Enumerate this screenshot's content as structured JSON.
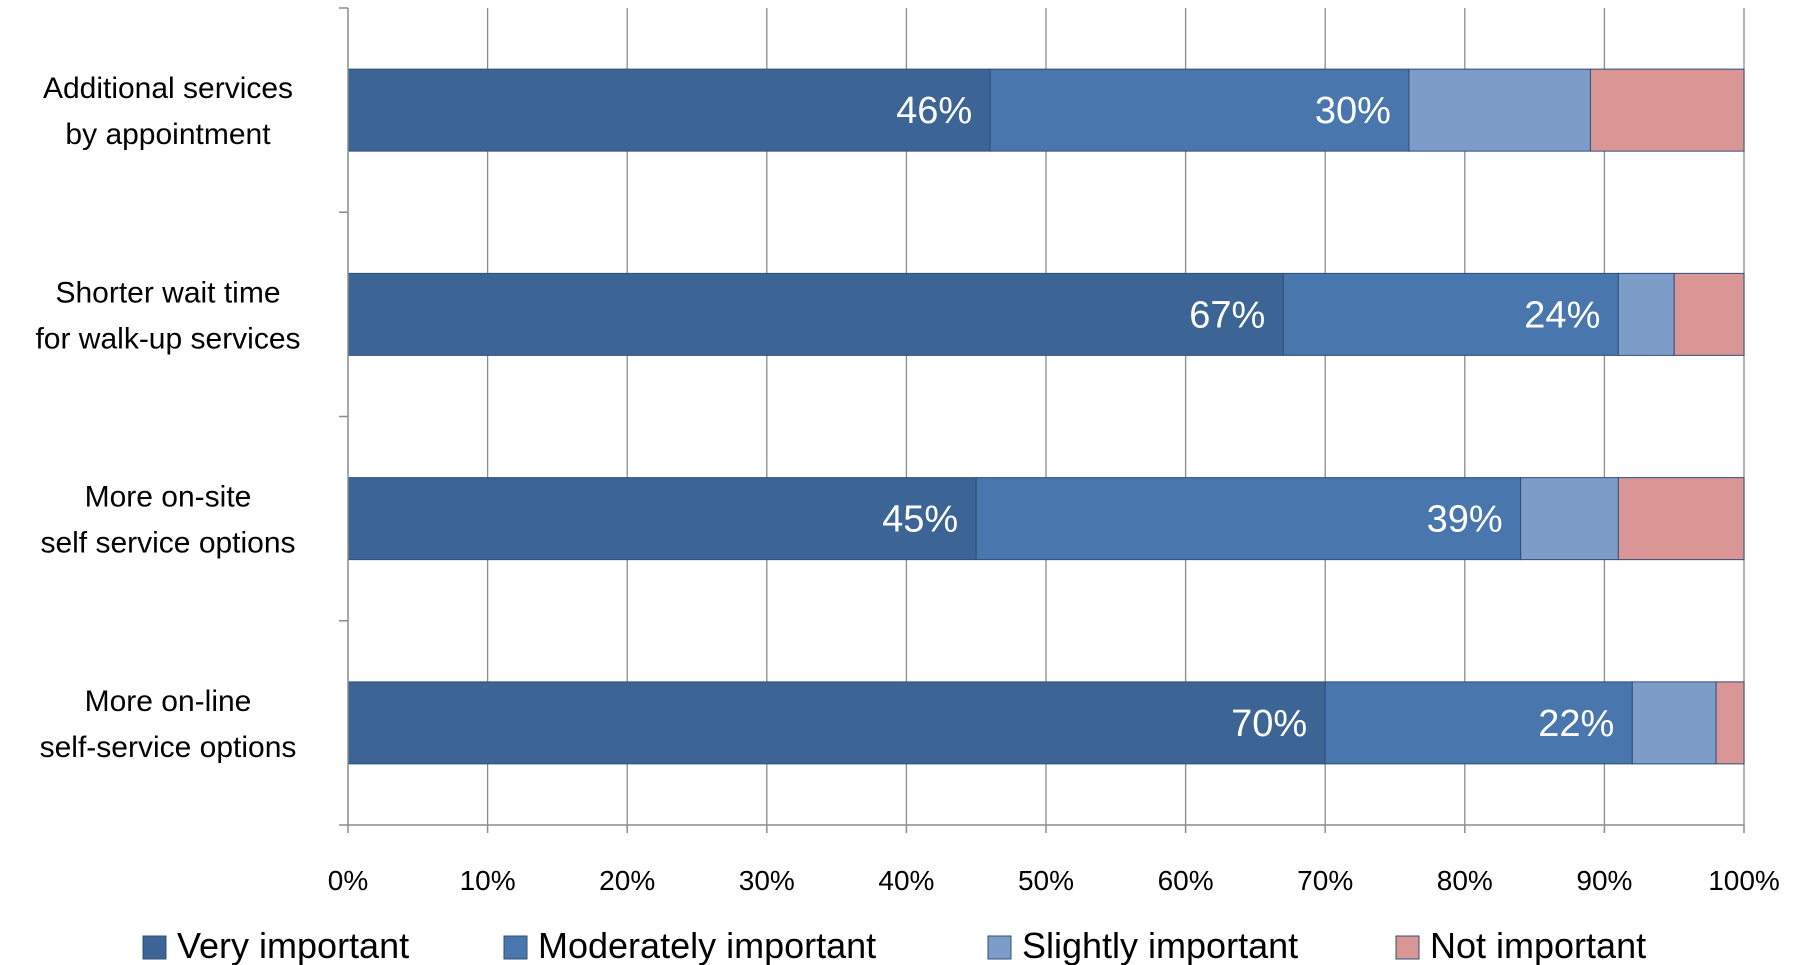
{
  "chart_data": {
    "type": "bar",
    "orientation": "horizontal",
    "stacked": "percent",
    "categories": [
      "Additional services by appointment",
      "Shorter wait time for walk-up services",
      "More on-site self service options",
      "More on-line self-service options"
    ],
    "category_label_lines": [
      [
        "Additional services",
        "by appointment"
      ],
      [
        "Shorter wait time",
        "for walk-up services"
      ],
      [
        "More on-site",
        "self service options"
      ],
      [
        "More on-line",
        "self-service options"
      ]
    ],
    "series": [
      {
        "name": "Very important",
        "color": "#3c6595",
        "values": [
          46,
          67,
          45,
          70
        ],
        "show_labels": true
      },
      {
        "name": "Moderately important",
        "color": "#4876ad",
        "values": [
          30,
          24,
          39,
          22
        ],
        "show_labels": true
      },
      {
        "name": "Slightly important",
        "color": "#7d9dc8",
        "values": [
          13,
          4,
          7,
          6
        ],
        "show_labels": false
      },
      {
        "name": "Not important",
        "color": "#d99694",
        "values": [
          11,
          5,
          9,
          2
        ],
        "show_labels": false
      }
    ],
    "xlim": [
      0,
      100
    ],
    "x_ticks": [
      0,
      10,
      20,
      30,
      40,
      50,
      60,
      70,
      80,
      90,
      100
    ],
    "x_tick_labels": [
      "0%",
      "10%",
      "20%",
      "30%",
      "40%",
      "50%",
      "60%",
      "70%",
      "80%",
      "90%",
      "100%"
    ],
    "grid": "vertical",
    "legend_position": "bottom",
    "title": "",
    "xlabel": "",
    "ylabel": ""
  }
}
